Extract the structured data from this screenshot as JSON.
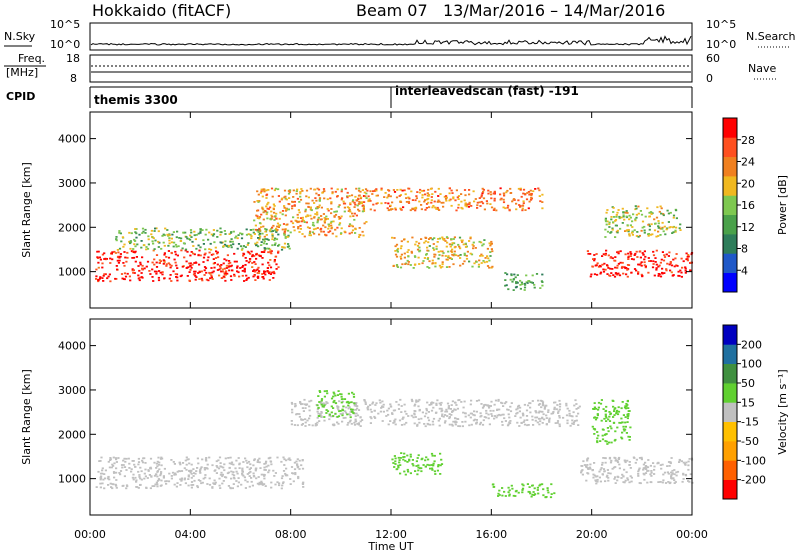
{
  "header": {
    "station": "Hokkaido (fitACF)",
    "beam": "Beam 07",
    "dates": "13/Mar/2016 – 14/Mar/2016"
  },
  "strip_panels": {
    "nsky": {
      "label": "N.Sky",
      "ticks": [
        "10^5",
        "10^0"
      ],
      "right_ticks": [
        "10^5",
        "10^0"
      ],
      "right_label": "N.Search"
    },
    "freq": {
      "label_top": "Freq.",
      "label_bottom": "[MHz]",
      "ticks": [
        "18",
        "8"
      ],
      "right_ticks": [
        "60",
        "0"
      ],
      "right_label": "Nave"
    },
    "cpid": {
      "label": "CPID",
      "segments": [
        "themis 3300",
        "interleavedscan (fast) -191"
      ]
    }
  },
  "x_axis": {
    "label": "Time UT",
    "ticks": [
      "00:00",
      "04:00",
      "08:00",
      "12:00",
      "16:00",
      "20:00",
      "00:00"
    ]
  },
  "chart_data": [
    {
      "type": "heatmap",
      "name": "power",
      "ylabel": "Slant Range [km]",
      "yticks": [
        1000,
        2000,
        3000,
        4000
      ],
      "ylim": [
        180,
        4600
      ],
      "xlim_hours": [
        0,
        24
      ],
      "colorbar": {
        "label": "Power [dB]",
        "ticks": [
          "28",
          "24",
          "20",
          "16",
          "12",
          "8",
          "4"
        ],
        "range": [
          0,
          30
        ],
        "colors": [
          "#0000ff",
          "#1f58c8",
          "#2e7d5a",
          "#4aa14a",
          "#7ec850",
          "#f0b820",
          "#f08020",
          "#ff5020",
          "#ff0000"
        ]
      },
      "echo_regions": [
        {
          "start_h": 0.2,
          "end_h": 7.5,
          "range_low": 800,
          "range_high": 1500,
          "power_db": 28
        },
        {
          "start_h": 1.0,
          "end_h": 8.0,
          "range_low": 1500,
          "range_high": 2000,
          "power_db": 14
        },
        {
          "start_h": 6.5,
          "end_h": 11.0,
          "range_low": 1800,
          "range_high": 2900,
          "power_db": 20
        },
        {
          "start_h": 10.5,
          "end_h": 18.0,
          "range_low": 2400,
          "range_high": 2900,
          "power_db": 22
        },
        {
          "start_h": 12.0,
          "end_h": 16.0,
          "range_low": 1100,
          "range_high": 1800,
          "power_db": 18
        },
        {
          "start_h": 16.5,
          "end_h": 18.0,
          "range_low": 600,
          "range_high": 1000,
          "power_db": 12
        },
        {
          "start_h": 19.8,
          "end_h": 24.0,
          "range_low": 900,
          "range_high": 1500,
          "power_db": 28
        },
        {
          "start_h": 20.5,
          "end_h": 23.5,
          "range_low": 1800,
          "range_high": 2500,
          "power_db": 16
        }
      ]
    },
    {
      "type": "heatmap",
      "name": "velocity",
      "ylabel": "Slant Range [km]",
      "yticks": [
        1000,
        2000,
        3000,
        4000
      ],
      "ylim": [
        180,
        4600
      ],
      "xlim_hours": [
        0,
        24
      ],
      "colorbar": {
        "label": "Velocity [m s⁻¹]",
        "ticks": [
          "200",
          "100",
          "50",
          "15",
          "-15",
          "-50",
          "-100",
          "-200"
        ],
        "range": [
          -250,
          250
        ],
        "colors": [
          "#ff0000",
          "#ff6000",
          "#ffa000",
          "#ffc000",
          "#c0c0c0",
          "#60d030",
          "#409040",
          "#2070a0",
          "#0000c0"
        ]
      },
      "echo_regions": [
        {
          "start_h": 0.2,
          "end_h": 8.5,
          "range_low": 800,
          "range_high": 1500,
          "velocity": 0
        },
        {
          "start_h": 8.0,
          "end_h": 19.5,
          "range_low": 2200,
          "range_high": 2800,
          "velocity": 0
        },
        {
          "start_h": 9.0,
          "end_h": 10.5,
          "range_low": 2400,
          "range_high": 3000,
          "velocity": 60
        },
        {
          "start_h": 12.0,
          "end_h": 14.0,
          "range_low": 1100,
          "range_high": 1600,
          "velocity": 60
        },
        {
          "start_h": 16.0,
          "end_h": 18.5,
          "range_low": 600,
          "range_high": 900,
          "velocity": 60
        },
        {
          "start_h": 19.5,
          "end_h": 24.0,
          "range_low": 900,
          "range_high": 1500,
          "velocity": 0
        },
        {
          "start_h": 20.0,
          "end_h": 21.5,
          "range_low": 1800,
          "range_high": 2800,
          "velocity": 60
        }
      ]
    }
  ]
}
